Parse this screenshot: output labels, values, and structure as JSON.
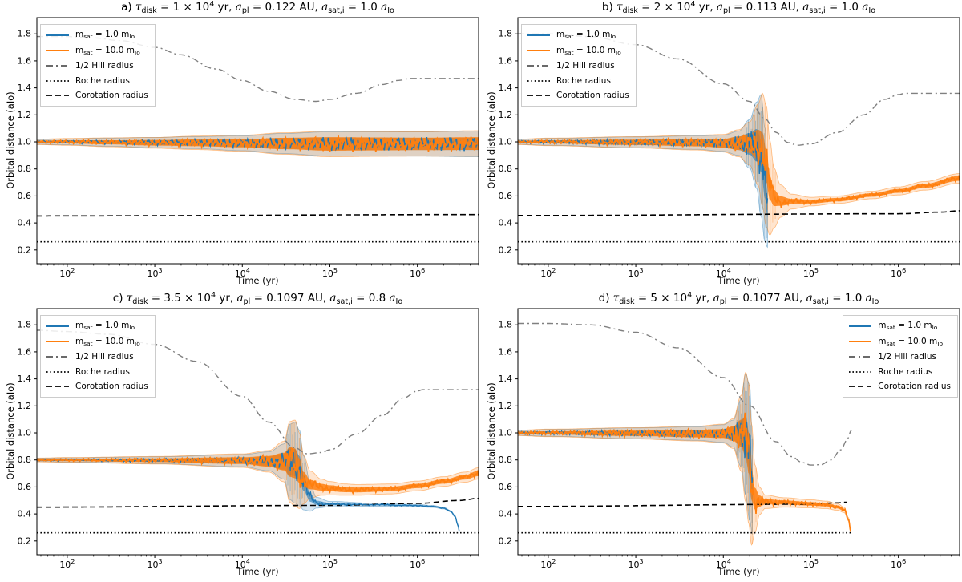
{
  "figure": {
    "background": "#ffffff"
  },
  "colors": {
    "blue": "#1f77b4",
    "orange": "#ff7f0e",
    "hill_gray": "#808080",
    "black": "#000000",
    "legend_border": "#cccccc"
  },
  "legend": {
    "entries": [
      {
        "key": "sat1",
        "label": "m~sat~ = 1.0 m~Io~",
        "style": "solid",
        "color": "#1f77b4"
      },
      {
        "key": "sat10",
        "label": "m~sat~ = 10.0 m~Io~",
        "style": "solid",
        "color": "#ff7f0e"
      },
      {
        "key": "hill",
        "label": "1/2 Hill radius",
        "style": "dashdot",
        "color": "#555555"
      },
      {
        "key": "roche",
        "label": "Roche radius",
        "style": "dotted",
        "color": "#000000"
      },
      {
        "key": "coro",
        "label": "Corotation radius",
        "style": "dashed",
        "color": "#000000"
      }
    ]
  },
  "chart_data": {
    "type": "line",
    "axes": {
      "xlabel": "Time (yr)",
      "ylabel": "Orbital distance (aIo)",
      "xscale": "log",
      "xlim": [
        45,
        5000000
      ],
      "ylim": [
        0.098,
        1.92
      ],
      "xticks_exponents": [
        2,
        3,
        4,
        5,
        6
      ],
      "yticks": [
        0.2,
        0.4,
        0.6,
        0.8,
        1.0,
        1.2,
        1.4,
        1.6,
        1.8
      ],
      "grid": false
    },
    "panels": [
      {
        "id": "a",
        "title": "a) |τ|~disk~ = 1 × 10^4^ yr, |a|~pl~ = 0.122 AU, |a|~sat,i~ = 1.0 |a|~Io~",
        "legend_pos": "left",
        "series": {
          "hill": {
            "x": [
              45,
              100,
              200,
              400,
              1000,
              2000,
              5000,
              10000,
              20000,
              40000,
              70000,
              100000,
              200000,
              400000,
              600000,
              850000,
              1000000,
              5000000
            ],
            "y": [
              1.78,
              1.78,
              1.77,
              1.75,
              1.7,
              1.645,
              1.54,
              1.455,
              1.375,
              1.315,
              1.3,
              1.315,
              1.36,
              1.425,
              1.455,
              1.47,
              1.47,
              1.47
            ]
          },
          "roche": {
            "x": [
              45,
              5000000
            ],
            "y": [
              0.26,
              0.26
            ]
          },
          "coro": {
            "x": [
              45,
              5000000
            ],
            "y": [
              0.452,
              0.462
            ]
          },
          "sat1": {
            "x": [
              45,
              100,
              300,
              1000,
              3000,
              10000,
              30000,
              100000,
              300000,
              1000000,
              5000000
            ],
            "y": [
              1.0,
              1.0,
              0.998,
              0.995,
              0.995,
              0.99,
              0.988,
              0.985,
              0.985,
              0.985,
              0.985
            ],
            "ow": [
              0.018,
              0.022,
              0.03,
              0.038,
              0.045,
              0.055,
              0.075,
              0.09,
              0.09,
              0.09,
              0.095
            ],
            "iw": [
              0.008,
              0.01,
              0.013,
              0.018,
              0.022,
              0.028,
              0.04,
              0.047,
              0.046,
              0.045,
              0.045
            ]
          },
          "sat10": {
            "x": [
              45,
              100,
              300,
              1000,
              3000,
              10000,
              30000,
              100000,
              300000,
              1000000,
              5000000
            ],
            "y": [
              1.0,
              1.0,
              0.997,
              0.993,
              0.993,
              0.99,
              0.988,
              0.985,
              0.985,
              0.985,
              0.988
            ],
            "ow": [
              0.02,
              0.025,
              0.033,
              0.04,
              0.05,
              0.06,
              0.08,
              0.095,
              0.092,
              0.09,
              0.095
            ],
            "iw": [
              0.01,
              0.012,
              0.015,
              0.02,
              0.025,
              0.03,
              0.042,
              0.05,
              0.048,
              0.046,
              0.047
            ]
          }
        }
      },
      {
        "id": "b",
        "title": "b) |τ|~disk~ = 2 × 10^4^ yr, |a|~pl~ = 0.113 AU, |a|~sat,i~ = 1.0 |a|~Io~",
        "legend_pos": "left",
        "series": {
          "hill": {
            "x": [
              45,
              100,
              300,
              1000,
              3000,
              10000,
              20000,
              30000,
              40000,
              55000,
              70000,
              100000,
              200000,
              400000,
              700000,
              1000000,
              1200000,
              5000000
            ],
            "y": [
              1.8,
              1.8,
              1.78,
              1.72,
              1.615,
              1.43,
              1.3,
              1.17,
              1.07,
              0.995,
              0.975,
              0.985,
              1.07,
              1.2,
              1.315,
              1.35,
              1.36,
              1.36
            ]
          },
          "roche": {
            "x": [
              45,
              5000000
            ],
            "y": [
              0.26,
              0.26
            ]
          },
          "coro": {
            "x": [
              45,
              1000000,
              3000000,
              5000000
            ],
            "y": [
              0.455,
              0.468,
              0.48,
              0.49
            ]
          },
          "sat1": {
            "x": [
              45,
              100,
              1000,
              5000,
              10000,
              15000,
              20000,
              24000,
              27000,
              30000,
              32000
            ],
            "y": [
              1.0,
              1.0,
              0.997,
              0.995,
              0.99,
              0.99,
              0.985,
              0.975,
              0.9,
              0.68,
              0.52
            ],
            "ow": [
              0.018,
              0.025,
              0.04,
              0.05,
              0.06,
              0.09,
              0.18,
              0.32,
              0.45,
              0.42,
              0.3
            ],
            "iw": [
              0.008,
              0.01,
              0.018,
              0.025,
              0.03,
              0.05,
              0.08,
              0.12,
              0.12,
              0.1,
              0.08
            ]
          },
          "sat10": {
            "x": [
              45,
              100,
              1000,
              5000,
              10000,
              15000,
              20000,
              25000,
              28000,
              31000,
              34000,
              38000,
              45000,
              60000,
              100000,
              200000,
              500000,
              1000000,
              2000000,
              5000000
            ],
            "y": [
              1.0,
              1.0,
              0.997,
              0.995,
              0.99,
              0.99,
              0.988,
              0.98,
              0.94,
              0.82,
              0.66,
              0.585,
              0.562,
              0.558,
              0.558,
              0.572,
              0.607,
              0.637,
              0.675,
              0.73
            ],
            "ow": [
              0.02,
              0.028,
              0.042,
              0.055,
              0.065,
              0.1,
              0.16,
              0.3,
              0.42,
              0.45,
              0.35,
              0.22,
              0.12,
              0.055,
              0.032,
              0.028,
              0.028,
              0.03,
              0.032,
              0.035
            ],
            "iw": [
              0.01,
              0.012,
              0.02,
              0.028,
              0.032,
              0.05,
              0.07,
              0.11,
              0.13,
              0.12,
              0.09,
              0.06,
              0.035,
              0.02,
              0.014,
              0.013,
              0.013,
              0.014,
              0.015,
              0.018
            ]
          }
        }
      },
      {
        "id": "c",
        "title": "c) |τ|~disk~ = 3.5 × 10^4^ yr, |a|~pl~ = 0.1097 AU, |a|~sat,i~ = 0.8 |a|~Io~",
        "legend_pos": "left",
        "series": {
          "hill": {
            "x": [
              45,
              100,
              300,
              1000,
              3000,
              10000,
              20000,
              40000,
              55000,
              80000,
              100000,
              200000,
              400000,
              700000,
              1000000,
              1150000,
              5000000
            ],
            "y": [
              1.76,
              1.75,
              1.73,
              1.655,
              1.53,
              1.27,
              1.08,
              0.89,
              0.845,
              0.855,
              0.875,
              0.99,
              1.13,
              1.26,
              1.31,
              1.32,
              1.32
            ]
          },
          "roche": {
            "x": [
              45,
              5000000
            ],
            "y": [
              0.26,
              0.26
            ]
          },
          "coro": {
            "x": [
              45,
              100000,
              1000000,
              3000000,
              5000000
            ],
            "y": [
              0.45,
              0.463,
              0.478,
              0.5,
              0.515
            ]
          },
          "sat1": {
            "x": [
              45,
              100,
              1000,
              10000,
              20000,
              30000,
              35000,
              40000,
              45000,
              50000,
              60000,
              70000,
              100000,
              300000,
              1000000,
              1500000,
              2000000,
              2400000,
              2700000,
              2900000,
              3000000
            ],
            "y": [
              0.8,
              0.8,
              0.798,
              0.795,
              0.79,
              0.788,
              0.785,
              0.78,
              0.74,
              0.63,
              0.52,
              0.483,
              0.473,
              0.468,
              0.462,
              0.455,
              0.443,
              0.42,
              0.38,
              0.32,
              0.27
            ],
            "ow": [
              0.012,
              0.016,
              0.025,
              0.045,
              0.07,
              0.13,
              0.28,
              0.3,
              0.28,
              0.2,
              0.1,
              0.04,
              0.02,
              0.012,
              0.008,
              0.007,
              0.006,
              0.005,
              0.005,
              0.005,
              0.005
            ],
            "iw": [
              0.006,
              0.008,
              0.012,
              0.022,
              0.035,
              0.06,
              0.1,
              0.1,
              0.09,
              0.06,
              0.03,
              0.015,
              0.008,
              0.005,
              0.004,
              0.003,
              0.003,
              0.003,
              0.003,
              0.003,
              0.003
            ]
          },
          "sat10": {
            "x": [
              45,
              100,
              1000,
              10000,
              20000,
              30000,
              35000,
              40000,
              45000,
              50000,
              60000,
              80000,
              100000,
              150000,
              200000,
              500000,
              1000000,
              2000000,
              3500000,
              5000000
            ],
            "y": [
              0.8,
              0.8,
              0.798,
              0.795,
              0.79,
              0.788,
              0.785,
              0.775,
              0.72,
              0.655,
              0.617,
              0.598,
              0.59,
              0.58,
              0.578,
              0.585,
              0.607,
              0.64,
              0.672,
              0.7
            ],
            "ow": [
              0.014,
              0.018,
              0.028,
              0.05,
              0.08,
              0.15,
              0.3,
              0.32,
              0.28,
              0.18,
              0.1,
              0.06,
              0.05,
              0.042,
              0.04,
              0.037,
              0.036,
              0.036,
              0.038,
              0.042
            ],
            "iw": [
              0.007,
              0.009,
              0.014,
              0.025,
              0.04,
              0.065,
              0.11,
              0.11,
              0.09,
              0.055,
              0.035,
              0.025,
              0.022,
              0.019,
              0.018,
              0.017,
              0.016,
              0.016,
              0.017,
              0.02
            ]
          }
        }
      },
      {
        "id": "d",
        "title": "d) |τ|~disk~ = 5 × 10^4^ yr, |a|~pl~ = 0.1077 AU, |a|~sat,i~ = 1.0 |a|~Io~",
        "legend_pos": "right",
        "series": {
          "hill": {
            "x": [
              45,
              100,
              300,
              1000,
              3000,
              10000,
              20000,
              40000,
              60000,
              80000,
              100000,
              130000,
              170000,
              220000,
              260000,
              290000
            ],
            "y": [
              1.81,
              1.81,
              1.8,
              1.745,
              1.63,
              1.41,
              1.2,
              0.935,
              0.825,
              0.78,
              0.762,
              0.765,
              0.8,
              0.875,
              0.95,
              1.02
            ]
          },
          "roche": {
            "x": [
              45,
              290000
            ],
            "y": [
              0.26,
              0.26
            ]
          },
          "coro": {
            "x": [
              45,
              100000,
              200000,
              260000
            ],
            "y": [
              0.455,
              0.472,
              0.482,
              0.487
            ]
          },
          "sat1": {
            "x": [
              45,
              100,
              1000,
              5000,
              10000,
              13000,
              16000,
              18000,
              20000,
              21500
            ],
            "y": [
              1.0,
              1.0,
              0.997,
              0.995,
              0.995,
              0.995,
              1.0,
              0.99,
              0.85,
              0.6
            ],
            "ow": [
              0.018,
              0.025,
              0.04,
              0.05,
              0.065,
              0.1,
              0.25,
              0.45,
              0.5,
              0.35
            ],
            "iw": [
              0.008,
              0.01,
              0.018,
              0.025,
              0.03,
              0.05,
              0.09,
              0.14,
              0.13,
              0.09
            ]
          },
          "sat10": {
            "x": [
              45,
              100,
              1000,
              5000,
              10000,
              13000,
              16000,
              18000,
              19500,
              21000,
              23000,
              26000,
              30000,
              50000,
              100000,
              150000,
              200000,
              240000,
              270000,
              285000
            ],
            "y": [
              1.0,
              1.0,
              0.997,
              0.995,
              0.995,
              0.995,
              0.998,
              0.97,
              0.85,
              0.62,
              0.512,
              0.496,
              0.49,
              0.485,
              0.475,
              0.467,
              0.452,
              0.43,
              0.36,
              0.27
            ],
            "ow": [
              0.02,
              0.028,
              0.042,
              0.055,
              0.07,
              0.11,
              0.28,
              0.48,
              0.52,
              0.45,
              0.25,
              0.1,
              0.05,
              0.035,
              0.03,
              0.028,
              0.025,
              0.02,
              0.012,
              0.008
            ],
            "iw": [
              0.01,
              0.012,
              0.02,
              0.028,
              0.033,
              0.055,
              0.1,
              0.15,
              0.15,
              0.12,
              0.08,
              0.04,
              0.02,
              0.015,
              0.013,
              0.012,
              0.011,
              0.009,
              0.006,
              0.004
            ]
          }
        }
      }
    ]
  }
}
